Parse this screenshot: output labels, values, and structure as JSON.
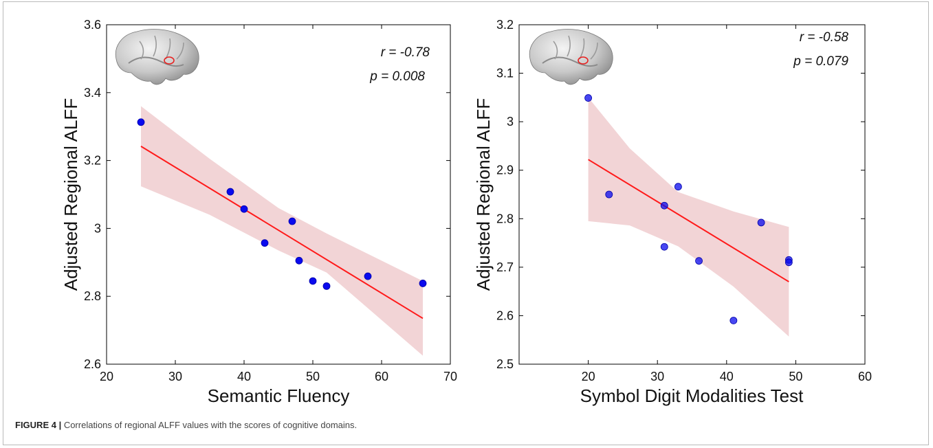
{
  "caption": {
    "label": "FIGURE 4 |",
    "text": " Correlations of regional ALFF values with the scores of cognitive domains."
  },
  "colors": {
    "point": "#0a0aee",
    "fit_line": "#ff1a1a",
    "ci_band": "#f2d4d6",
    "roi_marker": "#e8201f"
  },
  "icons": {
    "brain": "brain-lateral-icon"
  },
  "chart_data": [
    {
      "type": "scatter",
      "title": "",
      "xlabel": "Semantic Fluency",
      "ylabel": "Adjusted Regional ALFF",
      "xlim": [
        20,
        70
      ],
      "ylim": [
        2.6,
        3.6
      ],
      "x_ticks": [
        20,
        30,
        40,
        50,
        60,
        70
      ],
      "y_ticks": [
        2.6,
        2.8,
        3.0,
        3.2,
        3.4,
        3.6
      ],
      "x_tick_labels": [
        "20",
        "30",
        "40",
        "50",
        "60",
        "70"
      ],
      "y_tick_labels": [
        "2.6",
        "2.8",
        "3",
        "3.2",
        "3.4",
        "3.6"
      ],
      "grid": false,
      "annotations": [
        "r = -0.78",
        "p = 0.008"
      ],
      "points": [
        {
          "x": 25,
          "y": 3.313
        },
        {
          "x": 38,
          "y": 3.108
        },
        {
          "x": 40,
          "y": 3.057
        },
        {
          "x": 43,
          "y": 2.957
        },
        {
          "x": 47,
          "y": 3.021
        },
        {
          "x": 48,
          "y": 2.905
        },
        {
          "x": 50,
          "y": 2.845
        },
        {
          "x": 52,
          "y": 2.83
        },
        {
          "x": 58,
          "y": 2.859
        },
        {
          "x": 66,
          "y": 2.838
        }
      ],
      "fit": {
        "x": [
          25,
          66
        ],
        "y": [
          3.242,
          2.735
        ]
      },
      "ci_band": {
        "x": [
          25,
          35,
          45,
          52,
          66
        ],
        "upper": [
          3.36,
          3.205,
          3.06,
          2.985,
          2.845
        ],
        "lower": [
          3.124,
          3.04,
          2.935,
          2.87,
          2.625
        ]
      }
    },
    {
      "type": "scatter",
      "title": "",
      "xlabel": "Symbol Digit Modalities Test",
      "ylabel": "Adjusted Regional ALFF",
      "xlim": [
        10,
        60
      ],
      "ylim": [
        2.5,
        3.2
      ],
      "x_ticks": [
        20,
        30,
        40,
        50,
        60
      ],
      "y_ticks": [
        2.5,
        2.6,
        2.7,
        2.8,
        2.9,
        3.0,
        3.1,
        3.2
      ],
      "x_tick_labels": [
        "20",
        "30",
        "40",
        "50",
        "60"
      ],
      "y_tick_labels": [
        "2.5",
        "2.6",
        "2.7",
        "2.8",
        "2.9",
        "3",
        "3.1",
        "3.2"
      ],
      "grid": false,
      "annotations": [
        "r = -0.58",
        "p = 0.079"
      ],
      "points": [
        {
          "x": 20,
          "y": 3.049
        },
        {
          "x": 23,
          "y": 2.85
        },
        {
          "x": 31,
          "y": 2.827
        },
        {
          "x": 31,
          "y": 2.742
        },
        {
          "x": 33,
          "y": 2.866
        },
        {
          "x": 36,
          "y": 2.713
        },
        {
          "x": 41,
          "y": 2.59
        },
        {
          "x": 45,
          "y": 2.792
        },
        {
          "x": 49,
          "y": 2.715
        },
        {
          "x": 49,
          "y": 2.71
        }
      ],
      "fit": {
        "x": [
          20,
          49
        ],
        "y": [
          2.922,
          2.67
        ]
      },
      "ci_band": {
        "x": [
          20,
          26,
          33,
          41,
          49
        ],
        "upper": [
          3.05,
          2.945,
          2.855,
          2.815,
          2.783
        ],
        "lower": [
          2.795,
          2.786,
          2.743,
          2.66,
          2.557
        ]
      }
    }
  ]
}
